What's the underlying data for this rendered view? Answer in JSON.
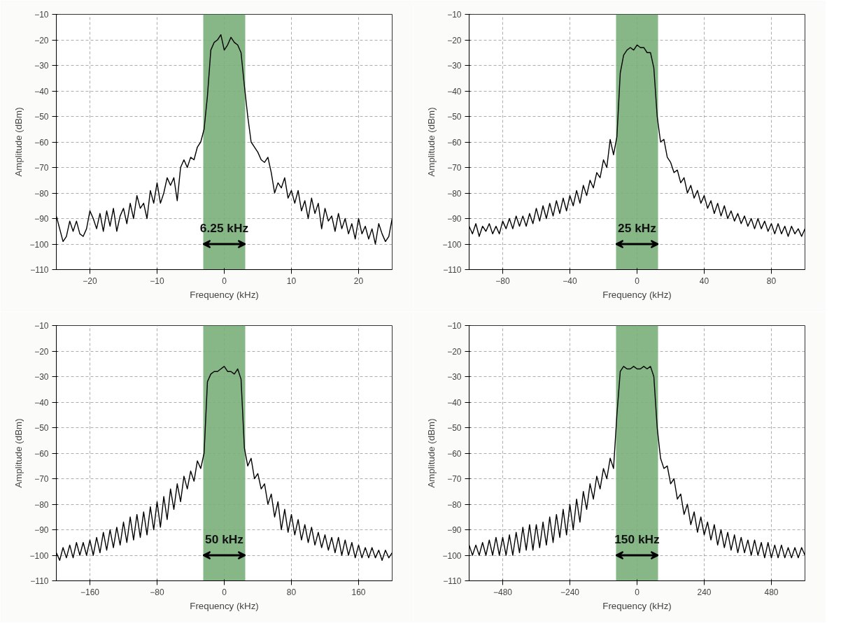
{
  "chart_data": [
    {
      "type": "line",
      "xlabel": "Frequency (kHz)",
      "ylabel": "Amplitude (dBm)",
      "xlim": [
        -25,
        25
      ],
      "xticks": [
        -20,
        -10,
        0,
        10,
        20
      ],
      "ylim": [
        -110,
        -10
      ],
      "yticks": [
        -110,
        -100,
        -90,
        -80,
        -70,
        -60,
        -50,
        -40,
        -30,
        -20,
        -10
      ],
      "grid": true,
      "marker": "none",
      "line_style": "solid",
      "bands": [
        {
          "axis": "x",
          "from": -3.125,
          "to": 3.125,
          "label": "6.25 kHz",
          "color": "#7aae7a"
        }
      ],
      "series": [
        {
          "color": "#000000",
          "x": [
            -25,
            -24.5,
            -24,
            -23.5,
            -23,
            -22.5,
            -22,
            -21.5,
            -21,
            -20.5,
            -20,
            -19.5,
            -19,
            -18.5,
            -18,
            -17.5,
            -17,
            -16.5,
            -16,
            -15.5,
            -15,
            -14.5,
            -14,
            -13.5,
            -13,
            -12.5,
            -12,
            -11.5,
            -11,
            -10.5,
            -10,
            -9.5,
            -9,
            -8.5,
            -8,
            -7.5,
            -7,
            -6.5,
            -6,
            -5.5,
            -5,
            -4.5,
            -4,
            -3.5,
            -3,
            -2.5,
            -2,
            -1.5,
            -1,
            -0.5,
            0,
            0.5,
            1,
            1.5,
            2,
            2.5,
            3,
            3.5,
            4,
            4.5,
            5,
            5.5,
            6,
            6.5,
            7,
            7.5,
            8,
            8.5,
            9,
            9.5,
            10,
            10.5,
            11,
            11.5,
            12,
            12.5,
            13,
            13.5,
            14,
            14.5,
            15,
            15.5,
            16,
            16.5,
            17,
            17.5,
            18,
            18.5,
            19,
            19.5,
            20,
            20.5,
            21,
            21.5,
            22,
            22.5,
            23,
            23.5,
            24,
            24.5,
            25
          ],
          "values": [
            -89,
            -94,
            -99,
            -97,
            -91,
            -95,
            -91,
            -96,
            -97,
            -94,
            -87,
            -90,
            -94,
            -88,
            -95,
            -87,
            -93,
            -86,
            -95,
            -89,
            -86,
            -92,
            -84,
            -90,
            -81,
            -86,
            -84,
            -90,
            -79,
            -84,
            -76,
            -84,
            -80,
            -74,
            -77,
            -74,
            -83,
            -70,
            -67,
            -70,
            -66,
            -67,
            -62,
            -60,
            -55,
            -42,
            -24,
            -21,
            -20,
            -18,
            -24,
            -22,
            -19,
            -21,
            -22,
            -25,
            -38,
            -50,
            -60,
            -62,
            -64,
            -67,
            -68,
            -66,
            -72,
            -80,
            -76,
            -78,
            -74,
            -82,
            -79,
            -84,
            -79,
            -87,
            -83,
            -90,
            -82,
            -88,
            -84,
            -94,
            -86,
            -91,
            -89,
            -95,
            -88,
            -94,
            -90,
            -96,
            -92,
            -98,
            -90,
            -96,
            -93,
            -98,
            -94,
            -100,
            -92,
            -96,
            -99,
            -97,
            -90
          ]
        }
      ]
    },
    {
      "type": "line",
      "xlabel": "Frequency (kHz)",
      "ylabel": "Amplitude (dBm)",
      "xlim": [
        -100,
        100
      ],
      "xticks": [
        -80,
        -40,
        0,
        40,
        80
      ],
      "ylim": [
        -110,
        -10
      ],
      "yticks": [
        -110,
        -100,
        -90,
        -80,
        -70,
        -60,
        -50,
        -40,
        -30,
        -20,
        -10
      ],
      "grid": true,
      "marker": "none",
      "line_style": "solid",
      "bands": [
        {
          "axis": "x",
          "from": -12.5,
          "to": 12.5,
          "label": "25 kHz",
          "color": "#7aae7a"
        }
      ],
      "series": [
        {
          "color": "#000000",
          "x": [
            -100,
            -98,
            -96,
            -94,
            -92,
            -90,
            -88,
            -86,
            -84,
            -82,
            -80,
            -78,
            -76,
            -74,
            -72,
            -70,
            -68,
            -66,
            -64,
            -62,
            -60,
            -58,
            -56,
            -54,
            -52,
            -50,
            -48,
            -46,
            -44,
            -42,
            -40,
            -38,
            -36,
            -34,
            -32,
            -30,
            -28,
            -26,
            -24,
            -22,
            -20,
            -18,
            -16,
            -14,
            -12,
            -10,
            -8,
            -6,
            -4,
            -2,
            0,
            2,
            4,
            6,
            8,
            10,
            12,
            14,
            16,
            18,
            20,
            22,
            24,
            26,
            28,
            30,
            32,
            34,
            36,
            38,
            40,
            42,
            44,
            46,
            48,
            50,
            52,
            54,
            56,
            58,
            60,
            62,
            64,
            66,
            68,
            70,
            72,
            74,
            76,
            78,
            80,
            82,
            84,
            86,
            88,
            90,
            92,
            94,
            96,
            98,
            100
          ],
          "values": [
            -93,
            -96,
            -92,
            -97,
            -93,
            -95,
            -92,
            -96,
            -93,
            -96,
            -91,
            -94,
            -90,
            -94,
            -89,
            -93,
            -89,
            -93,
            -88,
            -92,
            -86,
            -91,
            -85,
            -90,
            -84,
            -89,
            -83,
            -88,
            -82,
            -87,
            -81,
            -85,
            -79,
            -84,
            -77,
            -81,
            -75,
            -78,
            -72,
            -74,
            -67,
            -70,
            -59,
            -65,
            -58,
            -33,
            -26,
            -24,
            -23,
            -24,
            -22,
            -23,
            -23,
            -25,
            -25,
            -31,
            -50,
            -60,
            -59,
            -66,
            -68,
            -72,
            -71,
            -76,
            -74,
            -80,
            -77,
            -82,
            -79,
            -84,
            -81,
            -86,
            -83,
            -88,
            -84,
            -89,
            -85,
            -90,
            -87,
            -91,
            -88,
            -92,
            -89,
            -93,
            -90,
            -94,
            -90,
            -94,
            -91,
            -95,
            -92,
            -96,
            -92,
            -96,
            -93,
            -97,
            -93,
            -96,
            -94,
            -97,
            -94
          ]
        }
      ]
    },
    {
      "type": "line",
      "xlabel": "Frequency (kHz)",
      "ylabel": "Amplitude (dBm)",
      "xlim": [
        -200,
        200
      ],
      "xticks": [
        -160,
        -80,
        0,
        80,
        160
      ],
      "ylim": [
        -110,
        -10
      ],
      "yticks": [
        -110,
        -100,
        -90,
        -80,
        -70,
        -60,
        -50,
        -40,
        -30,
        -20,
        -10
      ],
      "grid": true,
      "marker": "none",
      "line_style": "solid",
      "bands": [
        {
          "axis": "x",
          "from": -25,
          "to": 25,
          "label": "50 kHz",
          "color": "#7aae7a"
        }
      ],
      "series": [
        {
          "color": "#000000",
          "x": [
            -200,
            -196,
            -192,
            -188,
            -184,
            -180,
            -176,
            -172,
            -168,
            -164,
            -160,
            -156,
            -152,
            -148,
            -144,
            -140,
            -136,
            -132,
            -128,
            -124,
            -120,
            -116,
            -112,
            -108,
            -104,
            -100,
            -96,
            -92,
            -88,
            -84,
            -80,
            -76,
            -72,
            -68,
            -64,
            -60,
            -56,
            -52,
            -48,
            -44,
            -40,
            -36,
            -32,
            -28,
            -24,
            -20,
            -16,
            -12,
            -8,
            -4,
            0,
            4,
            8,
            12,
            16,
            20,
            24,
            28,
            32,
            36,
            40,
            44,
            48,
            52,
            56,
            60,
            64,
            68,
            72,
            76,
            80,
            84,
            88,
            92,
            96,
            100,
            104,
            108,
            112,
            116,
            120,
            124,
            128,
            132,
            136,
            140,
            144,
            148,
            152,
            156,
            160,
            164,
            168,
            172,
            176,
            180,
            184,
            188,
            192,
            196,
            200
          ],
          "values": [
            -99,
            -102,
            -97,
            -101,
            -96,
            -101,
            -95,
            -100,
            -95,
            -100,
            -94,
            -100,
            -93,
            -99,
            -91,
            -98,
            -90,
            -97,
            -89,
            -96,
            -87,
            -95,
            -85,
            -94,
            -84,
            -93,
            -83,
            -92,
            -81,
            -90,
            -79,
            -89,
            -77,
            -86,
            -74,
            -82,
            -72,
            -79,
            -69,
            -74,
            -67,
            -71,
            -63,
            -66,
            -60,
            -32,
            -29,
            -28,
            -28,
            -27,
            -26,
            -28,
            -28,
            -29,
            -27,
            -31,
            -58,
            -65,
            -62,
            -70,
            -68,
            -74,
            -72,
            -80,
            -76,
            -85,
            -79,
            -90,
            -82,
            -91,
            -84,
            -92,
            -86,
            -94,
            -88,
            -95,
            -89,
            -96,
            -91,
            -97,
            -92,
            -98,
            -93,
            -99,
            -93,
            -100,
            -94,
            -100,
            -95,
            -101,
            -96,
            -101,
            -97,
            -101,
            -97,
            -101,
            -98,
            -102,
            -98,
            -101,
            -99
          ]
        }
      ]
    },
    {
      "type": "line",
      "xlabel": "Frequency (kHz)",
      "ylabel": "Amplitude (dBm)",
      "xlim": [
        -600,
        600
      ],
      "xticks": [
        -480,
        -240,
        0,
        240,
        480
      ],
      "ylim": [
        -110,
        -10
      ],
      "yticks": [
        -110,
        -100,
        -90,
        -80,
        -70,
        -60,
        -50,
        -40,
        -30,
        -20,
        -10
      ],
      "grid": true,
      "marker": "none",
      "line_style": "solid",
      "bands": [
        {
          "axis": "x",
          "from": -75,
          "to": 75,
          "label": "150 kHz",
          "color": "#7aae7a"
        }
      ],
      "series": [
        {
          "color": "#000000",
          "x": [
            -600,
            -588,
            -576,
            -564,
            -552,
            -540,
            -528,
            -516,
            -504,
            -492,
            -480,
            -468,
            -456,
            -444,
            -432,
            -420,
            -408,
            -396,
            -384,
            -372,
            -360,
            -348,
            -336,
            -324,
            -312,
            -300,
            -288,
            -276,
            -264,
            -252,
            -240,
            -228,
            -216,
            -204,
            -192,
            -180,
            -168,
            -156,
            -144,
            -132,
            -120,
            -108,
            -96,
            -84,
            -72,
            -60,
            -48,
            -36,
            -24,
            -12,
            0,
            12,
            24,
            36,
            48,
            60,
            72,
            84,
            96,
            108,
            120,
            132,
            144,
            156,
            168,
            180,
            192,
            204,
            216,
            228,
            240,
            252,
            264,
            276,
            288,
            300,
            312,
            324,
            336,
            348,
            360,
            372,
            384,
            396,
            408,
            420,
            432,
            444,
            456,
            468,
            480,
            492,
            504,
            516,
            528,
            540,
            552,
            564,
            576,
            588,
            600
          ],
          "values": [
            -96,
            -100,
            -96,
            -100,
            -95,
            -100,
            -94,
            -100,
            -93,
            -100,
            -93,
            -100,
            -92,
            -100,
            -91,
            -99,
            -89,
            -98,
            -88,
            -98,
            -88,
            -97,
            -87,
            -96,
            -85,
            -95,
            -84,
            -93,
            -82,
            -92,
            -80,
            -90,
            -78,
            -87,
            -75,
            -82,
            -72,
            -78,
            -69,
            -74,
            -66,
            -70,
            -62,
            -66,
            -45,
            -28,
            -26,
            -27,
            -27,
            -26,
            -27,
            -27,
            -26,
            -27,
            -26,
            -30,
            -50,
            -62,
            -66,
            -65,
            -72,
            -70,
            -78,
            -76,
            -84,
            -80,
            -88,
            -83,
            -91,
            -85,
            -92,
            -87,
            -94,
            -88,
            -96,
            -90,
            -97,
            -91,
            -98,
            -92,
            -99,
            -93,
            -99,
            -94,
            -100,
            -94,
            -100,
            -95,
            -101,
            -95,
            -101,
            -96,
            -101,
            -96,
            -101,
            -97,
            -101,
            -97,
            -101,
            -97,
            -100
          ]
        }
      ]
    }
  ]
}
